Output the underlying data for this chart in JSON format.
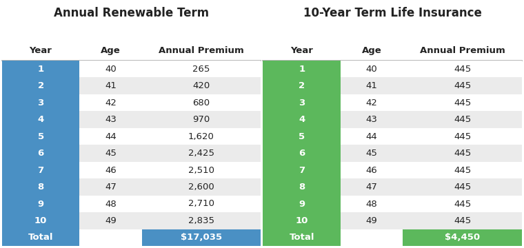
{
  "left_title": "Annual Renewable Term",
  "right_title": "10-Year Term Life Insurance",
  "headers": [
    "Year",
    "Age",
    "Annual Premium"
  ],
  "left_years": [
    "1",
    "2",
    "3",
    "4",
    "5",
    "6",
    "7",
    "8",
    "9",
    "10",
    "Total"
  ],
  "left_ages": [
    "40",
    "41",
    "42",
    "43",
    "44",
    "45",
    "46",
    "47",
    "48",
    "49",
    ""
  ],
  "left_premiums": [
    "265",
    "420",
    "680",
    "970",
    "1,620",
    "2,425",
    "2,510",
    "2,600",
    "2,710",
    "2,835",
    ""
  ],
  "left_total": "$17,035",
  "right_years": [
    "1",
    "2",
    "3",
    "4",
    "5",
    "6",
    "7",
    "8",
    "9",
    "10",
    "Total"
  ],
  "right_ages": [
    "40",
    "41",
    "42",
    "43",
    "44",
    "45",
    "46",
    "47",
    "48",
    "49",
    ""
  ],
  "right_premiums": [
    "445",
    "445",
    "445",
    "445",
    "445",
    "445",
    "445",
    "445",
    "445",
    "445",
    ""
  ],
  "right_total": "$4,450",
  "blue_color": "#4A90C4",
  "green_color": "#5CB85C",
  "row_odd_bg": "#FFFFFF",
  "row_even_bg": "#EBEBEB",
  "header_line_color": "#AAAAAA",
  "text_color_dark": "#222222",
  "text_color_white": "#FFFFFF",
  "title_fontsize": 12,
  "header_fontsize": 9.5,
  "cell_fontsize": 9.5,
  "total_fontsize": 9.5
}
